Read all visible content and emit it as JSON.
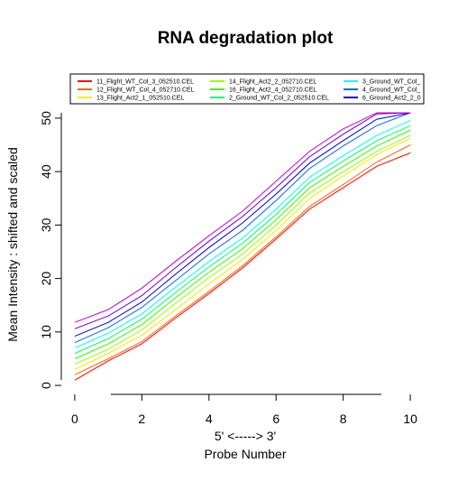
{
  "chart_data": {
    "type": "line",
    "title": "RNA degradation plot",
    "xlabel_line1": "5' <-----> 3'",
    "xlabel_line2": "Probe Number",
    "ylabel": "Mean Intensity : shifted and scaled",
    "x": [
      0,
      1,
      2,
      3,
      4,
      5,
      6,
      7,
      8,
      9,
      10
    ],
    "x_ticks": [
      0,
      2,
      4,
      6,
      8,
      10
    ],
    "y_ticks": [
      0,
      10,
      20,
      30,
      40,
      50
    ],
    "xlim": [
      -0.4,
      10.4
    ],
    "ylim": [
      -1,
      51
    ],
    "grid": false,
    "legend_position": "top",
    "series": [
      {
        "name": "11_Flight_WT_Col_3_052510.CEL",
        "color": "#FF0000",
        "values": [
          1.0,
          4.6,
          7.8,
          12.6,
          17.2,
          22.0,
          27.4,
          33.0,
          37.0,
          41.0,
          43.5
        ]
      },
      {
        "name": "12_Flight_WT_Col_4_052710.CEL",
        "color": "#FF6600",
        "values": [
          2.0,
          5.0,
          8.2,
          13.0,
          17.6,
          22.4,
          27.8,
          33.5,
          37.6,
          41.8,
          45.0
        ]
      },
      {
        "name": "13_Flight_Act2_1_052510.CEL",
        "color": "#FFE600",
        "values": [
          3.0,
          6.0,
          9.4,
          14.2,
          19.0,
          23.6,
          29.0,
          35.0,
          39.2,
          43.2,
          46.2
        ]
      },
      {
        "name": "14_Flight_Act2_2_052710.CEL",
        "color": "#99FF00",
        "values": [
          4.0,
          6.8,
          10.4,
          15.4,
          20.2,
          24.6,
          30.0,
          36.0,
          40.0,
          43.8,
          46.8
        ]
      },
      {
        "name": "16_Flight_Act2_4_052710.CEL",
        "color": "#33FF00",
        "values": [
          5.0,
          7.8,
          11.4,
          16.4,
          21.2,
          25.6,
          31.0,
          37.0,
          41.0,
          44.8,
          47.8
        ]
      },
      {
        "name": "2_Ground_WT_Col_2_052510.CEL",
        "color": "#00FF66",
        "values": [
          6.0,
          8.8,
          12.4,
          17.4,
          22.2,
          26.6,
          32.0,
          38.0,
          42.0,
          45.8,
          48.6
        ]
      },
      {
        "name": "3_Ground_WT_Col_",
        "color": "#00FFFF",
        "values": [
          7.0,
          9.8,
          13.4,
          18.4,
          23.2,
          27.6,
          33.0,
          39.0,
          43.0,
          46.8,
          49.6
        ]
      },
      {
        "name": "4_Ground_WT_Col_",
        "color": "#0066FF",
        "values": [
          8.0,
          10.8,
          14.6,
          19.6,
          24.6,
          29.0,
          34.6,
          40.6,
          44.8,
          48.6,
          51.0
        ]
      },
      {
        "name": "6_Ground_Act2_2_0",
        "color": "#0000CC",
        "values": [
          9.2,
          11.8,
          15.6,
          20.8,
          25.8,
          30.4,
          35.8,
          41.6,
          45.8,
          49.8,
          51.0
        ]
      },
      {
        "name": "",
        "color": "#6600CC",
        "values": [
          10.6,
          13.0,
          16.8,
          22.0,
          27.0,
          31.6,
          37.0,
          42.8,
          47.0,
          50.8,
          51.0
        ]
      },
      {
        "name": "",
        "color": "#CC00CC",
        "values": [
          11.8,
          14.2,
          18.2,
          23.2,
          28.0,
          32.6,
          38.2,
          43.8,
          48.0,
          51.0,
          51.0
        ]
      }
    ]
  }
}
